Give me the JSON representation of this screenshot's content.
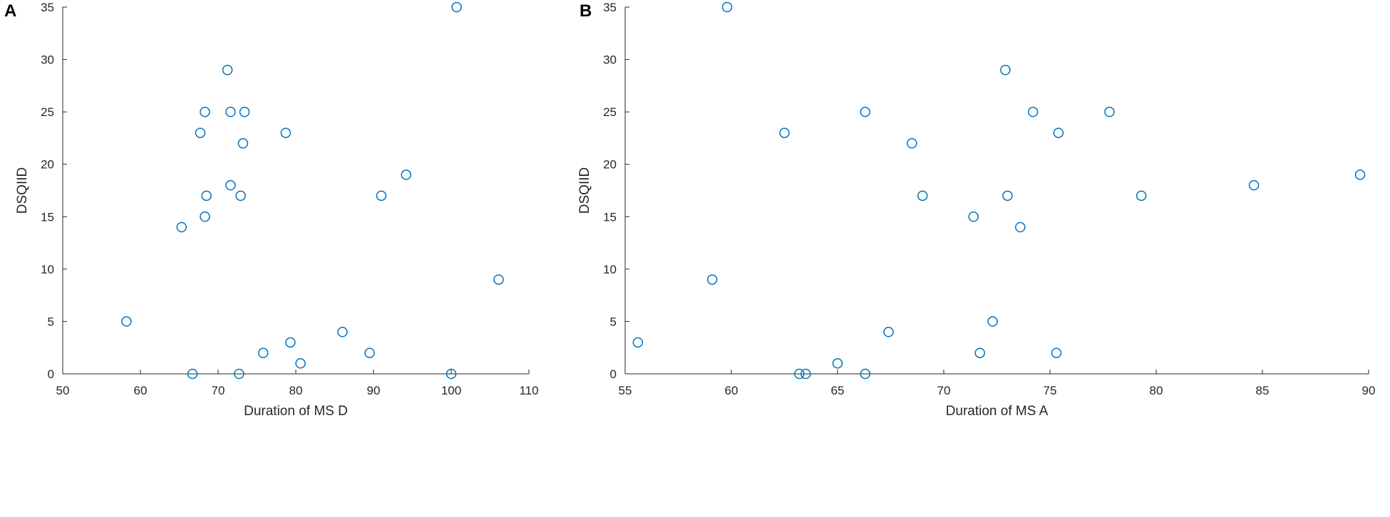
{
  "chart_data": [
    {
      "panel_label": "A",
      "type": "scatter",
      "xlabel": "Duration of MS D",
      "ylabel": "DSQIID",
      "xlim": [
        50,
        110
      ],
      "ylim": [
        0,
        35
      ],
      "xticks": [
        50,
        60,
        70,
        80,
        90,
        100,
        110
      ],
      "yticks": [
        0,
        5,
        10,
        15,
        20,
        25,
        30,
        35
      ],
      "marker_color": "#0072BD",
      "points": [
        {
          "x": 100.7,
          "y": 35
        },
        {
          "x": 71.2,
          "y": 29
        },
        {
          "x": 68.3,
          "y": 25
        },
        {
          "x": 71.6,
          "y": 25
        },
        {
          "x": 73.4,
          "y": 25
        },
        {
          "x": 67.7,
          "y": 23
        },
        {
          "x": 78.7,
          "y": 23
        },
        {
          "x": 73.2,
          "y": 22
        },
        {
          "x": 94.2,
          "y": 19
        },
        {
          "x": 71.6,
          "y": 18
        },
        {
          "x": 68.5,
          "y": 17
        },
        {
          "x": 72.9,
          "y": 17
        },
        {
          "x": 91.0,
          "y": 17
        },
        {
          "x": 68.3,
          "y": 15
        },
        {
          "x": 65.3,
          "y": 14
        },
        {
          "x": 106.1,
          "y": 9
        },
        {
          "x": 58.2,
          "y": 5
        },
        {
          "x": 86.0,
          "y": 4
        },
        {
          "x": 79.3,
          "y": 3
        },
        {
          "x": 75.8,
          "y": 2
        },
        {
          "x": 89.5,
          "y": 2
        },
        {
          "x": 80.6,
          "y": 1
        },
        {
          "x": 66.7,
          "y": 0
        },
        {
          "x": 72.7,
          "y": 0
        },
        {
          "x": 100.0,
          "y": 0
        }
      ]
    },
    {
      "panel_label": "B",
      "type": "scatter",
      "xlabel": "Duration of MS A",
      "ylabel": "DSQIID",
      "xlim": [
        55,
        90
      ],
      "ylim": [
        0,
        35
      ],
      "xticks": [
        55,
        60,
        65,
        70,
        75,
        80,
        85,
        90
      ],
      "yticks": [
        0,
        5,
        10,
        15,
        20,
        25,
        30,
        35
      ],
      "marker_color": "#0072BD",
      "points": [
        {
          "x": 59.8,
          "y": 35
        },
        {
          "x": 72.9,
          "y": 29
        },
        {
          "x": 66.3,
          "y": 25
        },
        {
          "x": 74.2,
          "y": 25
        },
        {
          "x": 77.8,
          "y": 25
        },
        {
          "x": 62.5,
          "y": 23
        },
        {
          "x": 75.4,
          "y": 23
        },
        {
          "x": 68.5,
          "y": 22
        },
        {
          "x": 89.6,
          "y": 19
        },
        {
          "x": 84.6,
          "y": 18
        },
        {
          "x": 69.0,
          "y": 17
        },
        {
          "x": 73.0,
          "y": 17
        },
        {
          "x": 79.3,
          "y": 17
        },
        {
          "x": 71.4,
          "y": 15
        },
        {
          "x": 73.6,
          "y": 14
        },
        {
          "x": 59.1,
          "y": 9
        },
        {
          "x": 72.3,
          "y": 5
        },
        {
          "x": 67.4,
          "y": 4
        },
        {
          "x": 55.6,
          "y": 3
        },
        {
          "x": 71.7,
          "y": 2
        },
        {
          "x": 75.3,
          "y": 2
        },
        {
          "x": 65.0,
          "y": 1
        },
        {
          "x": 63.2,
          "y": 0
        },
        {
          "x": 63.5,
          "y": 0
        },
        {
          "x": 66.3,
          "y": 0
        }
      ]
    }
  ]
}
